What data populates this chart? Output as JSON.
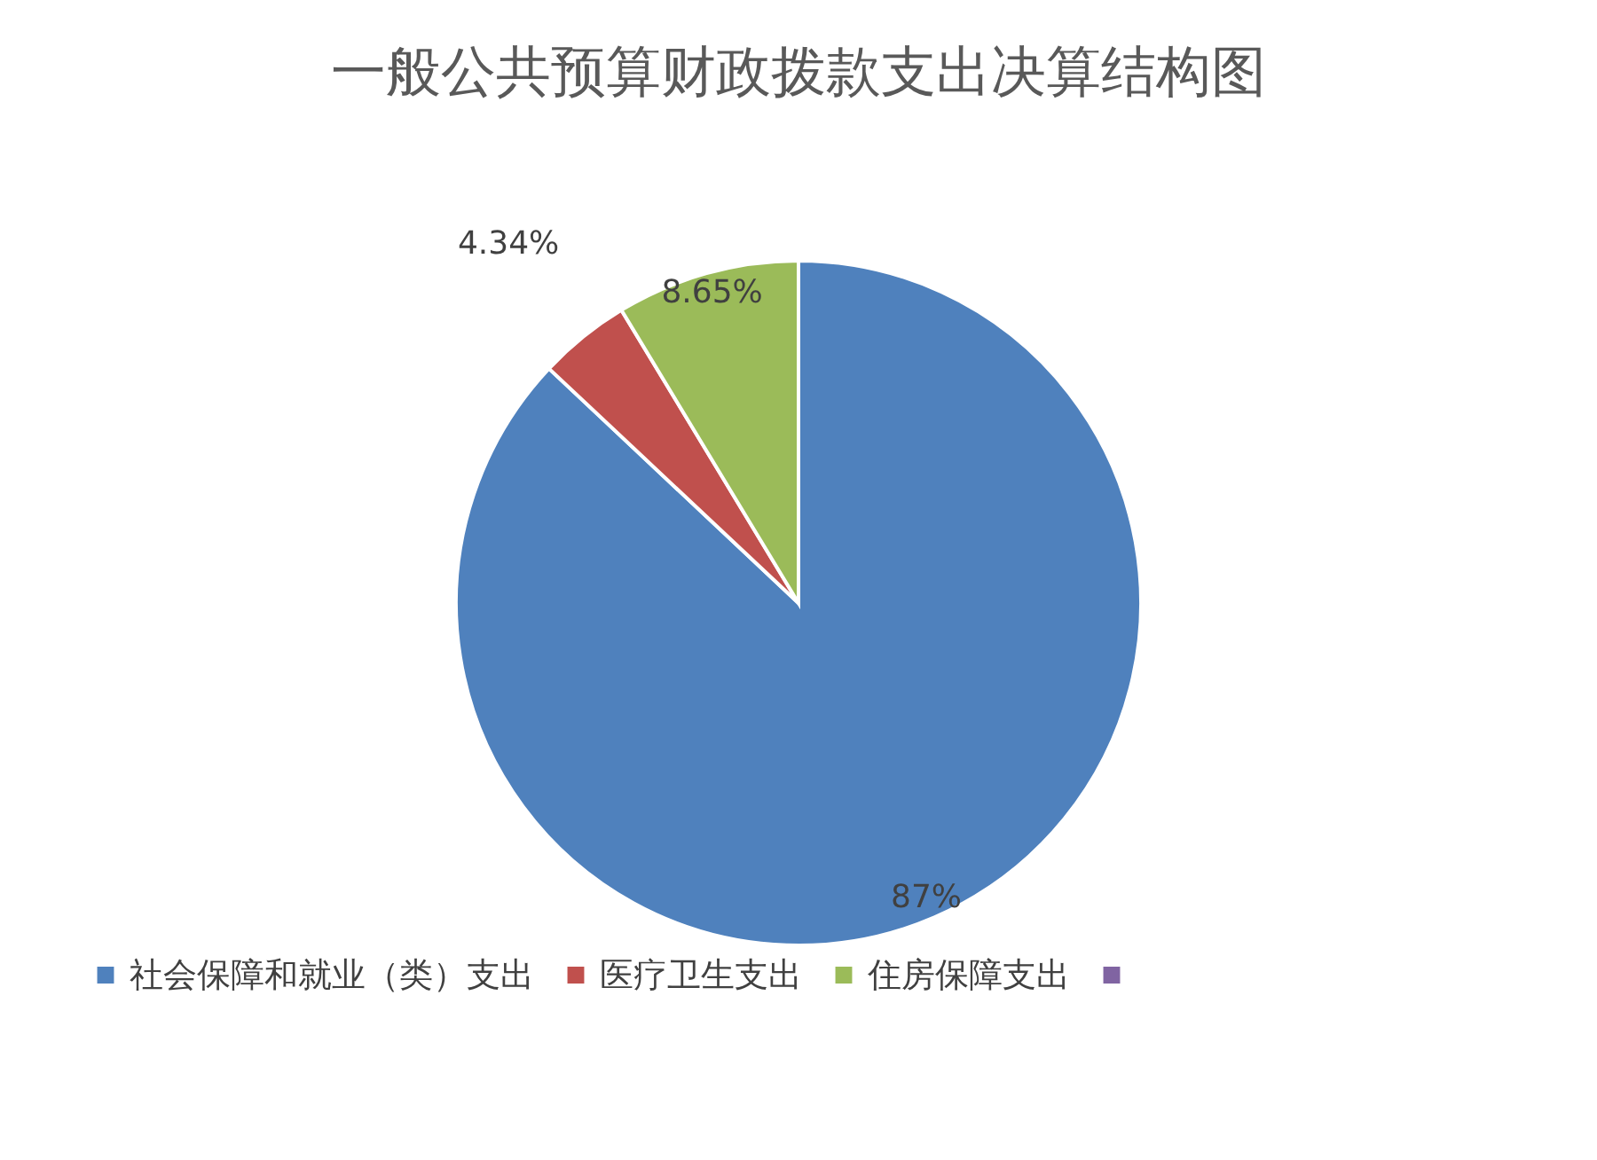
{
  "chart_data": {
    "type": "pie",
    "title": "一般公共预算财政拨款支出决算结构图",
    "categories": [
      "社会保障和就业（类）支出",
      "医疗卫生支出",
      "住房保障支出",
      null
    ],
    "values": [
      87,
      4.34,
      8.65,
      0
    ],
    "colors": [
      "#4f81bd",
      "#c0504d",
      "#9bbb59",
      "#8064a2"
    ],
    "value_labels": [
      "87%",
      "4.34%",
      "8.65%",
      null
    ],
    "legend": "bottom left"
  }
}
